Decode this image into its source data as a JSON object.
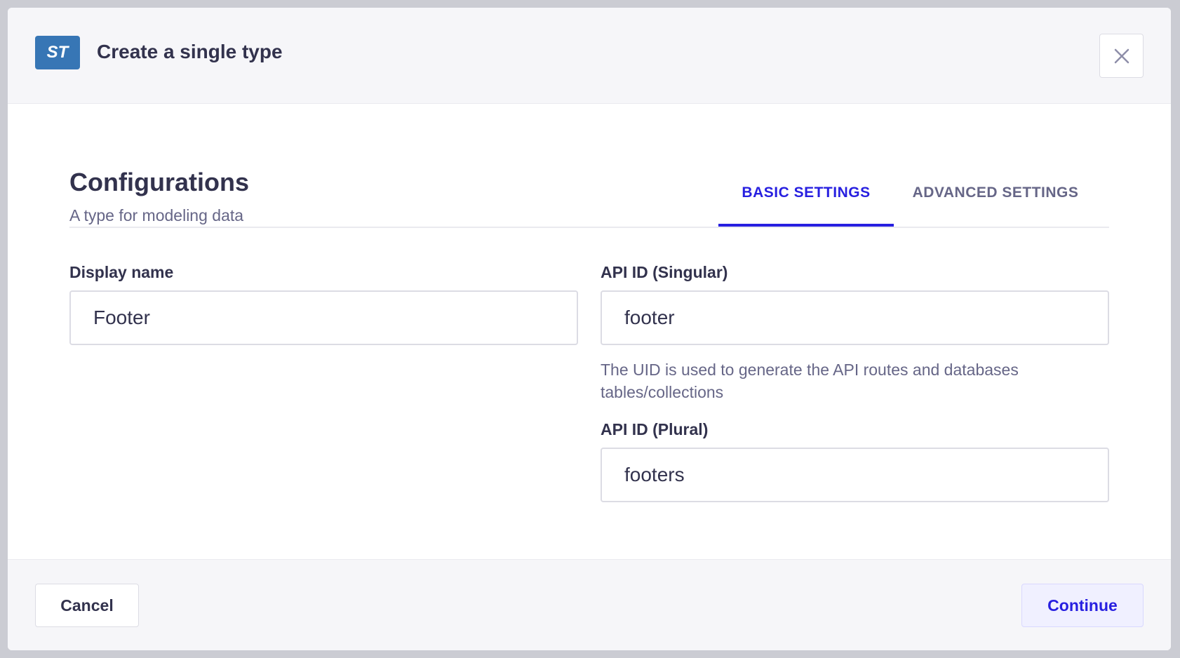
{
  "header": {
    "badge": "ST",
    "title": "Create a single type",
    "close_icon": "close-icon"
  },
  "section": {
    "title": "Configurations",
    "subtitle": "A type for modeling data"
  },
  "tabs": [
    {
      "label": "BASIC SETTINGS",
      "active": true
    },
    {
      "label": "ADVANCED SETTINGS",
      "active": false
    }
  ],
  "fields": {
    "display_name": {
      "label": "Display name",
      "value": "Footer"
    },
    "singular": {
      "label": "API ID (Singular)",
      "value": "footer",
      "help": "The UID is used to generate the API routes and databases tables/collections"
    },
    "plural": {
      "label": "API ID (Plural)",
      "value": "footers"
    }
  },
  "footer": {
    "cancel": "Cancel",
    "continue": "Continue"
  },
  "colors": {
    "accent": "#271fe0",
    "badge": "#3776b5"
  }
}
